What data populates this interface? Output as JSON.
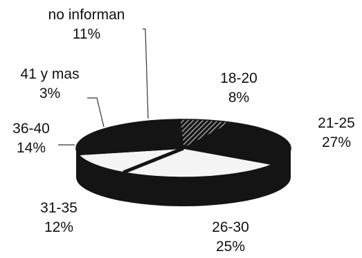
{
  "chart_data": {
    "type": "pie",
    "title": "",
    "legend": "none",
    "slices": [
      {
        "label": "18-20",
        "percent_label": "8%",
        "value": 8
      },
      {
        "label": "21-25",
        "percent_label": "27%",
        "value": 27
      },
      {
        "label": "26-30",
        "percent_label": "25%",
        "value": 25
      },
      {
        "label": "31-35",
        "percent_label": "12%",
        "value": 12
      },
      {
        "label": "36-40",
        "percent_label": "14%",
        "value": 14
      },
      {
        "label": "41 y mas",
        "percent_label": "3%",
        "value": 3
      },
      {
        "label": "no informan",
        "percent_label": "11%",
        "value": 11
      }
    ],
    "colors": {
      "dark": "#141414",
      "light": "#f4f4f4",
      "hatch": "#9a9a9a"
    }
  }
}
